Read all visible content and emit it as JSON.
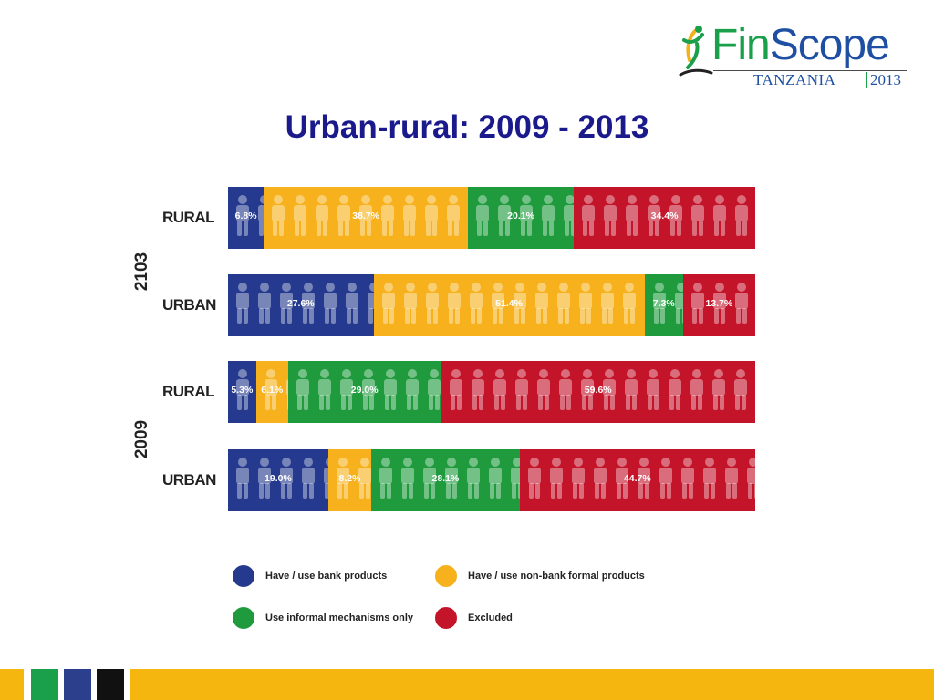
{
  "logo": {
    "brand_a": "Fin",
    "brand_b": "Scope",
    "country": "TANZANIA",
    "year": "2013"
  },
  "title": "Urban-rural: 2009 - 2013",
  "colors": {
    "bank": "#253a8e",
    "non_bank": "#f6b11c",
    "informal": "#1f9b3e",
    "excluded": "#c4142a",
    "footer_gold": "#f5b70f",
    "footer_green": "#1aa04a",
    "footer_navy": "#2b3f8c",
    "footer_black": "#111111"
  },
  "chart_data": {
    "type": "bar",
    "orientation": "horizontal",
    "stacked": true,
    "groups": [
      {
        "year_label": "2103",
        "rows": [
          {
            "label": "RURAL",
            "values": [
              6.8,
              38.7,
              20.1,
              34.4
            ],
            "value_labels": [
              "6.8%",
              "38.7%",
              "20.1%",
              "34.4%"
            ]
          },
          {
            "label": "URBAN",
            "values": [
              27.6,
              51.4,
              7.3,
              13.7
            ],
            "value_labels": [
              "27.6%",
              "51.4%",
              "7.3%",
              "13.7%"
            ]
          }
        ]
      },
      {
        "year_label": "2009",
        "rows": [
          {
            "label": "RURAL",
            "values": [
              5.3,
              6.1,
              29.0,
              59.6
            ],
            "value_labels": [
              "5.3%",
              "6.1%",
              "29.0%",
              "59.6%"
            ]
          },
          {
            "label": "URBAN",
            "values": [
              19.0,
              8.2,
              28.1,
              44.7
            ],
            "value_labels": [
              "19.0%",
              "8.2%",
              "28.1%",
              "44.7%"
            ]
          }
        ]
      }
    ],
    "series": [
      {
        "name": "Have / use bank products",
        "color": "#253a8e"
      },
      {
        "name": "Have / use non-bank formal products",
        "color": "#f6b11c"
      },
      {
        "name": "Use informal mechanisms only",
        "color": "#1f9b3e"
      },
      {
        "name": "Excluded",
        "color": "#c4142a"
      }
    ],
    "xlim": [
      0,
      100
    ],
    "legend_position": "bottom",
    "grid": false
  }
}
